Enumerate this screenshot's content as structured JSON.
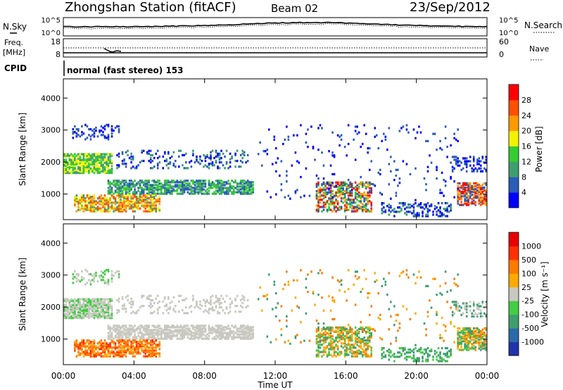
{
  "header": {
    "station": "Zhongshan Station (fitACF)",
    "beam": "Beam 02",
    "date": "23/Sep/2012"
  },
  "strip": {
    "nsky_label": "N.Sky",
    "nsky_ticks": [
      "10^5",
      "10^0"
    ],
    "nsearch_label": "N.Search",
    "nsearch_ticks": [
      "10^5",
      "10^0"
    ],
    "freq_label": "Freq.",
    "freq_unit": "[MHz]",
    "freq_ticks": [
      "18",
      "8"
    ],
    "nave_label": "Nave",
    "nave_ticks": [
      "60",
      "0"
    ],
    "cpid_label": "CPID",
    "cpid_text": "normal (fast stereo) 153"
  },
  "chart_data": [
    {
      "type": "heatmap",
      "panel": "power",
      "ylabel": "Slant Range [km]",
      "ylim": [
        200,
        4600
      ],
      "yticks": [
        "4000",
        "3000",
        "2000",
        "1000"
      ],
      "colorbar_label": "Power [dB]",
      "colorbar_ticks": [
        "28",
        "24",
        "20",
        "16",
        "12",
        "8",
        "4"
      ],
      "colors": [
        "#0000ff",
        "#2a5cb8",
        "#3f9e6e",
        "#33cc33",
        "#f2f200",
        "#ff9900",
        "#ff5000",
        "#ff0000"
      ],
      "background": "#ffffff"
    },
    {
      "type": "heatmap",
      "panel": "velocity",
      "ylabel": "Slant Range [km]",
      "ylim": [
        200,
        4600
      ],
      "yticks": [
        "4000",
        "3000",
        "2000",
        "1000"
      ],
      "colorbar_label": "Velocity [m s⁻¹]",
      "colorbar_ticks": [
        "1000",
        "500",
        "100",
        "25",
        "-25",
        "-100",
        "-500",
        "-1000"
      ],
      "colors": [
        "#2233aa",
        "#2a6aa8",
        "#3f9e6e",
        "#44cc44",
        "#c8c8c0",
        "#ffaa00",
        "#ff7a00",
        "#ff3000",
        "#e60000"
      ],
      "background": "#ffffff"
    }
  ],
  "xaxis": {
    "label": "Time UT",
    "ticks": [
      "00:00",
      "04:00",
      "08:00",
      "12:00",
      "16:00",
      "20:00",
      "00:00"
    ]
  }
}
